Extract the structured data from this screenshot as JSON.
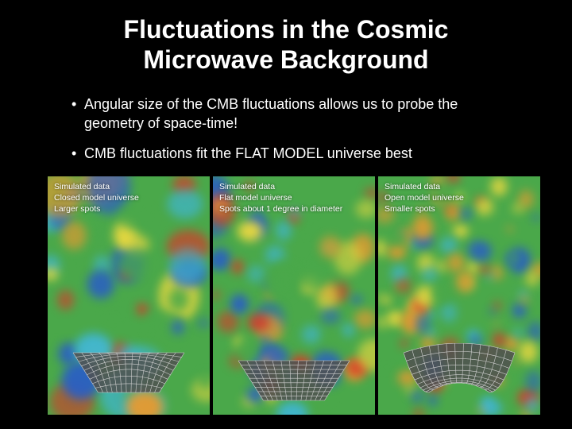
{
  "title": "Fluctuations in the Cosmic Microwave Background",
  "bullets": {
    "b1": "Angular size of the CMB fluctuations allows us to probe the geometry of space-time!",
    "b2_pre": "CMB fluctuations fit the ",
    "b2_em": "FLAT MODEL",
    "b2_post": " universe best"
  },
  "colors": {
    "slide_bg": "#000000",
    "text": "#ffffff",
    "cmb_base": "#4aa84a",
    "cmb_cyan": "#3fb6d6",
    "cmb_blue": "#2a5fc4",
    "cmb_yellow": "#e8d840",
    "cmb_orange": "#e89a30",
    "cmb_red": "#d63a2a",
    "grid_fill": "#505050",
    "grid_line": "#cfcfcf"
  },
  "panels": [
    {
      "label_l1": "Simulated data",
      "label_l2": "Closed model universe",
      "label_l3": "Larger spots",
      "spot_scale": 1.4,
      "curvature": "closed"
    },
    {
      "label_l1": "Simulated data",
      "label_l2": "Flat model universe",
      "label_l3": "Spots about 1 degree in diameter",
      "spot_scale": 1.0,
      "curvature": "flat"
    },
    {
      "label_l1": "Simulated data",
      "label_l2": "Open model universe",
      "label_l3": "Smaller spots",
      "spot_scale": 0.65,
      "curvature": "open"
    }
  ]
}
